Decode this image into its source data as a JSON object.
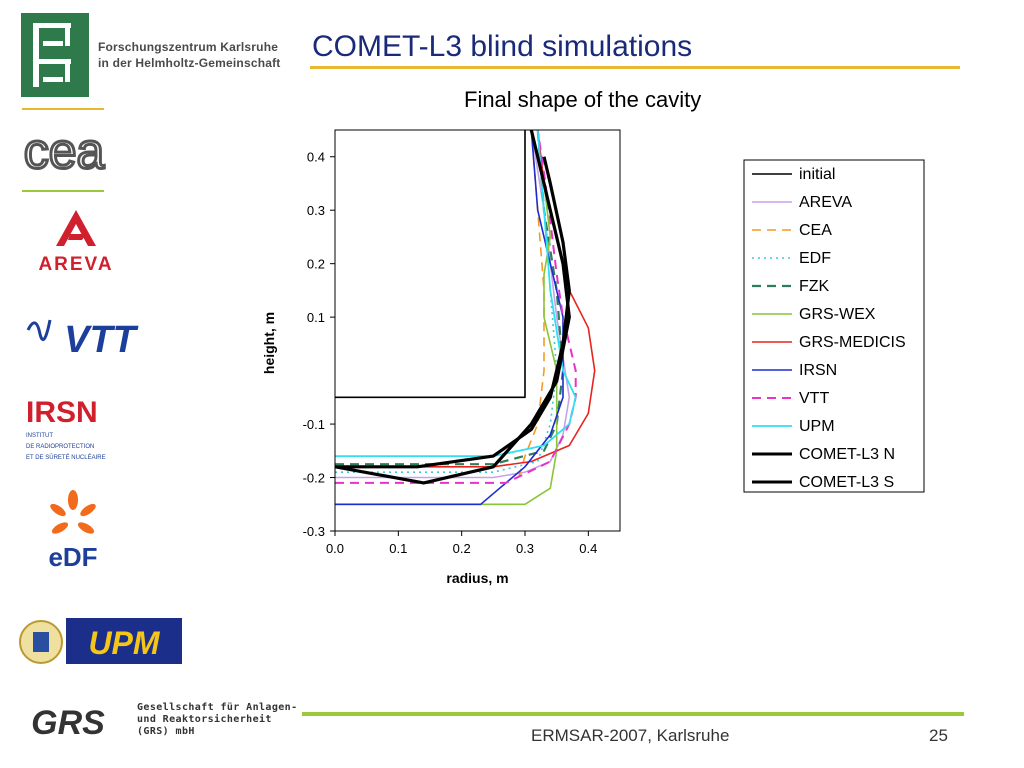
{
  "header": {
    "title": "COMET-L3 blind simulations",
    "fzk_line1": "Forschungszentrum Karlsruhe",
    "fzk_line2": "in der Helmholtz-Gemeinschaft"
  },
  "sidebar": {
    "logos": [
      {
        "name": "cea",
        "text": "cea"
      },
      {
        "name": "areva",
        "text": "AREVA"
      },
      {
        "name": "vtt",
        "text": "VTT"
      },
      {
        "name": "irsn",
        "text": "IRSN",
        "sub1": "INSTITUT",
        "sub2": "DE RADIOPROTECTION",
        "sub3": "ET DE SÛRETÉ NUCLÉAIRE"
      },
      {
        "name": "edf",
        "text": "eDF"
      },
      {
        "name": "upm",
        "text": "UPM"
      }
    ],
    "grs": {
      "text": "GRS",
      "line1": "Gesellschaft für Anlagen-",
      "line2": "und Reaktorsicherheit",
      "line3": "(GRS) mbH"
    }
  },
  "footer": {
    "conference": "ERMSAR-2007, Karlsruhe",
    "page": "25"
  },
  "colors": {
    "title": "#1a2a7a",
    "accent_gold": "#e8b830",
    "accent_green": "#9ac93c"
  },
  "chart_data": {
    "type": "line",
    "title": "Final shape of the cavity",
    "xlabel": "radius, m",
    "ylabel": "height, m",
    "xlim": [
      0.0,
      0.45
    ],
    "ylim": [
      -0.3,
      0.45
    ],
    "xticks": [
      "0.0",
      "0.1",
      "0.2",
      "0.3",
      "0.4"
    ],
    "yticks": [
      "-0.3",
      "-0.2",
      "-0.1",
      "0.1",
      "0.2",
      "0.3",
      "0.4"
    ],
    "legend_position": "right",
    "series": [
      {
        "name": "initial",
        "color": "#000000",
        "dash": "solid",
        "width": 1.6,
        "x": [
          0.0,
          0.3,
          0.3
        ],
        "y": [
          -0.05,
          -0.05,
          0.45
        ]
      },
      {
        "name": "AREVA",
        "color": "#c8a2e8",
        "dash": "solid",
        "width": 1.6,
        "x": [
          0.0,
          0.25,
          0.3,
          0.34,
          0.36,
          0.37,
          0.35,
          0.33,
          0.31
        ],
        "y": [
          -0.2,
          -0.2,
          -0.19,
          -0.17,
          -0.12,
          -0.05,
          0.1,
          0.3,
          0.45
        ]
      },
      {
        "name": "CEA",
        "color": "#f39a27",
        "dash": "dash",
        "width": 1.6,
        "x": [
          0.29,
          0.3,
          0.32,
          0.33,
          0.33,
          0.32,
          0.31
        ],
        "y": [
          -0.2,
          -0.16,
          -0.1,
          0.0,
          0.15,
          0.3,
          0.45
        ]
      },
      {
        "name": "EDF",
        "color": "#3cc8d8",
        "dash": "dot",
        "width": 1.6,
        "x": [
          0.0,
          0.25,
          0.32,
          0.34,
          0.35,
          0.34,
          0.33,
          0.32
        ],
        "y": [
          -0.19,
          -0.19,
          -0.17,
          -0.1,
          0.0,
          0.15,
          0.3,
          0.45
        ]
      },
      {
        "name": "FZK",
        "color": "#2e7d5a",
        "dash": "dash",
        "width": 2.2,
        "x": [
          0.0,
          0.25,
          0.33,
          0.35,
          0.36,
          0.35,
          0.33,
          0.32
        ],
        "y": [
          -0.175,
          -0.175,
          -0.15,
          -0.1,
          0.0,
          0.15,
          0.3,
          0.45
        ]
      },
      {
        "name": "GRS-WEX",
        "color": "#8ac43a",
        "dash": "solid",
        "width": 1.6,
        "x": [
          0.0,
          0.3,
          0.34,
          0.35,
          0.35,
          0.33,
          0.33,
          0.34,
          0.33,
          0.32
        ],
        "y": [
          -0.25,
          -0.25,
          -0.22,
          -0.15,
          0.0,
          0.1,
          0.18,
          0.25,
          0.35,
          0.45
        ]
      },
      {
        "name": "GRS-MEDICIS",
        "color": "#e8231e",
        "dash": "solid",
        "width": 1.6,
        "x": [
          0.0,
          0.25,
          0.31,
          0.37,
          0.4,
          0.41,
          0.4,
          0.37,
          0.35,
          0.33,
          0.32
        ],
        "y": [
          -0.18,
          -0.18,
          -0.17,
          -0.14,
          -0.08,
          0.0,
          0.08,
          0.15,
          0.25,
          0.35,
          0.45
        ]
      },
      {
        "name": "IRSN",
        "color": "#1f2ad0",
        "dash": "solid",
        "width": 1.6,
        "x": [
          0.0,
          0.23,
          0.26,
          0.3,
          0.34,
          0.36,
          0.36,
          0.34,
          0.32,
          0.31
        ],
        "y": [
          -0.25,
          -0.25,
          -0.22,
          -0.18,
          -0.12,
          -0.05,
          0.1,
          0.2,
          0.3,
          0.45
        ]
      },
      {
        "name": "VTT",
        "color": "#e833c8",
        "dash": "dash",
        "width": 2.0,
        "x": [
          0.0,
          0.27,
          0.34,
          0.37,
          0.38,
          0.38,
          0.36,
          0.35,
          0.34,
          0.33,
          0.32
        ],
        "y": [
          -0.21,
          -0.21,
          -0.17,
          -0.1,
          -0.05,
          0.0,
          0.1,
          0.18,
          0.28,
          0.37,
          0.45
        ]
      },
      {
        "name": "UPM",
        "color": "#2ee0f0",
        "dash": "solid",
        "width": 1.8,
        "x": [
          0.0,
          0.25,
          0.33,
          0.37,
          0.38,
          0.36,
          0.34,
          0.33,
          0.32
        ],
        "y": [
          -0.16,
          -0.16,
          -0.14,
          -0.1,
          -0.05,
          0.0,
          0.15,
          0.3,
          0.45
        ]
      },
      {
        "name": "COMET-L3 N",
        "color": "#000000",
        "dash": "solid",
        "width": 3.2,
        "x": [
          0.0,
          0.14,
          0.25,
          0.31,
          0.35,
          0.37,
          0.36,
          0.34,
          0.32,
          0.31
        ],
        "y": [
          -0.18,
          -0.21,
          -0.18,
          -0.1,
          -0.02,
          0.1,
          0.2,
          0.3,
          0.4,
          0.45
        ]
      },
      {
        "name": "COMET-L3 S",
        "color": "#000000",
        "dash": "solid",
        "width": 3.2,
        "x": [
          0.0,
          0.13,
          0.25,
          0.31,
          0.34,
          0.36,
          0.37,
          0.36,
          0.34,
          0.33
        ],
        "y": [
          -0.18,
          -0.18,
          -0.16,
          -0.11,
          -0.05,
          0.05,
          0.15,
          0.24,
          0.35,
          0.4
        ]
      }
    ]
  }
}
